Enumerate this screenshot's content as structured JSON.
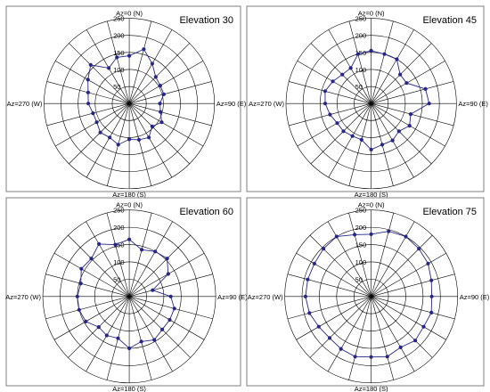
{
  "chart_data": [
    {
      "type": "radar",
      "title": "Elevation 30",
      "axis_labels": {
        "north": "Az=0 (N)",
        "east": "Az=90 (E)",
        "south": "Az=180 (S)",
        "west": "Az=270 (W)"
      },
      "radial_ticks": [
        "50",
        "100",
        "150",
        "200",
        "250"
      ],
      "rlim": [
        0,
        250
      ],
      "azimuth_step_deg": 15,
      "grid": true,
      "series": [
        {
          "azimuth": [
            0,
            15,
            30,
            45,
            60,
            75,
            90,
            105,
            120,
            135,
            150,
            165,
            180,
            195,
            210,
            225,
            240,
            255,
            270,
            285,
            300,
            315,
            330,
            345
          ],
          "values": [
            140,
            165,
            135,
            110,
            105,
            105,
            90,
            95,
            110,
            95,
            115,
            110,
            105,
            125,
            115,
            120,
            110,
            110,
            120,
            125,
            140,
            160,
            120,
            140
          ]
        }
      ]
    },
    {
      "type": "radar",
      "title": "Elevation 45",
      "axis_labels": {
        "north": "Az=0 (N)",
        "east": "Az=90 (E)",
        "south": "Az=180 (S)",
        "west": "Az=270 (W)"
      },
      "radial_ticks": [
        "50",
        "100",
        "150",
        "200",
        "250"
      ],
      "rlim": [
        0,
        250
      ],
      "azimuth_step_deg": 15,
      "grid": true,
      "series": [
        {
          "azimuth": [
            0,
            15,
            30,
            45,
            60,
            75,
            90,
            105,
            120,
            135,
            150,
            165,
            180,
            195,
            210,
            225,
            240,
            255,
            270,
            285,
            300,
            315,
            330,
            345
          ],
          "values": [
            155,
            150,
            150,
            120,
            120,
            165,
            170,
            120,
            130,
            115,
            125,
            125,
            135,
            110,
            110,
            115,
            115,
            125,
            135,
            140,
            130,
            120,
            120,
            150
          ]
        }
      ]
    },
    {
      "type": "radar",
      "title": "Elevation 60",
      "axis_labels": {
        "north": "Az=0 (N)",
        "east": "Az=90 (E)",
        "south": "Az=180 (S)",
        "west": "Az=270 (W)"
      },
      "radial_ticks": [
        "50",
        "100",
        "150",
        "200",
        "250"
      ],
      "rlim": [
        0,
        250
      ],
      "azimuth_step_deg": 15,
      "grid": true,
      "series": [
        {
          "azimuth": [
            0,
            15,
            30,
            45,
            60,
            75,
            90,
            105,
            120,
            135,
            150,
            165,
            180,
            195,
            210,
            225,
            240,
            255,
            270,
            285,
            300,
            315,
            330,
            345
          ],
          "values": [
            165,
            140,
            150,
            155,
            130,
            70,
            120,
            135,
            135,
            135,
            145,
            135,
            150,
            125,
            130,
            125,
            145,
            150,
            150,
            145,
            160,
            155,
            175,
            155
          ]
        }
      ]
    },
    {
      "type": "radar",
      "title": "Elevation 75",
      "axis_labels": {
        "north": "Az=0 (N)",
        "east": "Az=90 (E)",
        "south": "Az=180 (S)",
        "west": "Az=270 (W)"
      },
      "radial_ticks": [
        "50",
        "100",
        "150",
        "200",
        "250"
      ],
      "rlim": [
        0,
        250
      ],
      "azimuth_step_deg": 15,
      "grid": true,
      "series": [
        {
          "azimuth": [
            0,
            15,
            30,
            45,
            60,
            75,
            90,
            105,
            120,
            135,
            150,
            165,
            180,
            195,
            210,
            225,
            240,
            255,
            270,
            285,
            300,
            315,
            330,
            345
          ],
          "values": [
            180,
            195,
            200,
            195,
            190,
            180,
            175,
            180,
            175,
            180,
            170,
            180,
            175,
            180,
            175,
            170,
            175,
            185,
            190,
            190,
            190,
            195,
            200,
            185
          ]
        }
      ]
    }
  ],
  "colors": {
    "series": "#26268a",
    "grid": "#000000",
    "frame": "#7f7f7f",
    "text": "#000000"
  }
}
